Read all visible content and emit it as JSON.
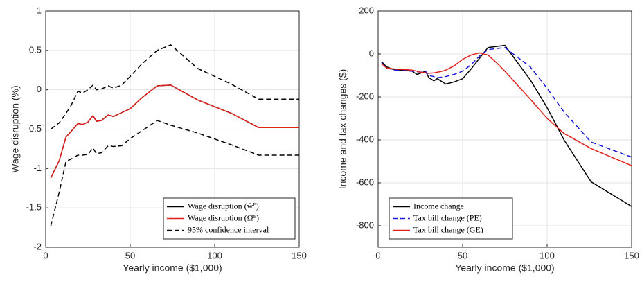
{
  "chart_data": [
    {
      "type": "line",
      "xlabel": "Yearly income ($1,000)",
      "ylabel": "Wage disruption (%)",
      "xlim": [
        0,
        150
      ],
      "ylim": [
        -2,
        1
      ],
      "xticks": [
        0,
        50,
        100,
        150
      ],
      "yticks": [
        -2,
        -1.5,
        -1,
        -0.5,
        0,
        0.5,
        1
      ],
      "grid": true,
      "legend": "lower right",
      "x": [
        3,
        8,
        12,
        15,
        19,
        22,
        25,
        28,
        30,
        33,
        37,
        40,
        45,
        50,
        57,
        66,
        74,
        90,
        110,
        126,
        150
      ],
      "series": [
        {
          "name": "Wage disruption (ŵᴱ)",
          "color": "#000000",
          "dashed": false,
          "values": [
            -1.12,
            -0.9,
            -0.6,
            -0.53,
            -0.43,
            -0.44,
            -0.41,
            -0.33,
            -0.4,
            -0.39,
            -0.32,
            -0.34,
            -0.29,
            -0.24,
            -0.1,
            0.05,
            0.06,
            -0.13,
            -0.3,
            -0.48,
            -0.48
          ]
        },
        {
          "name": "Wage disruption (Ω̂ᴱ)",
          "color": "#e0201b",
          "dashed": false,
          "values": [
            -1.12,
            -0.9,
            -0.6,
            -0.53,
            -0.43,
            -0.44,
            -0.41,
            -0.33,
            -0.4,
            -0.39,
            -0.32,
            -0.34,
            -0.29,
            -0.24,
            -0.1,
            0.05,
            0.06,
            -0.13,
            -0.3,
            -0.48,
            -0.48
          ]
        },
        {
          "name": "95% confidence interval",
          "color": "#000000",
          "dashed": true,
          "upper": [
            -0.5,
            -0.42,
            -0.3,
            -0.2,
            -0.02,
            -0.04,
            0.0,
            0.06,
            0.0,
            0.01,
            0.05,
            0.02,
            0.06,
            0.17,
            0.33,
            0.5,
            0.57,
            0.27,
            0.07,
            -0.12,
            -0.12
          ],
          "lower": [
            -1.73,
            -1.3,
            -0.91,
            -0.88,
            -0.83,
            -0.83,
            -0.82,
            -0.74,
            -0.81,
            -0.8,
            -0.71,
            -0.72,
            -0.71,
            -0.62,
            -0.52,
            -0.39,
            -0.45,
            -0.55,
            -0.7,
            -0.83,
            -0.83
          ]
        }
      ]
    },
    {
      "type": "line",
      "xlabel": "Yearly income ($1,000)",
      "ylabel": "Income and tax changes ($)",
      "xlim": [
        0,
        150
      ],
      "ylim": [
        -900,
        200
      ],
      "xticks": [
        0,
        50,
        100,
        150
      ],
      "yticks": [
        -800,
        -600,
        -400,
        -200,
        0,
        200
      ],
      "grid": true,
      "legend": "lower left",
      "x": [
        2,
        5,
        10,
        15,
        20,
        23,
        25,
        28,
        30,
        33,
        35,
        38,
        40,
        45,
        50,
        55,
        60,
        65,
        70,
        75,
        90,
        100,
        110,
        126,
        150
      ],
      "series": [
        {
          "name": "Income change",
          "color": "#000000",
          "dashed": false,
          "values": [
            -35,
            -60,
            -75,
            -75,
            -80,
            -95,
            -90,
            -80,
            -110,
            -125,
            -115,
            -130,
            -140,
            -130,
            -115,
            -70,
            -20,
            30,
            35,
            40,
            -120,
            -250,
            -400,
            -595,
            -710
          ]
        },
        {
          "name": "Tax bill change (PE)",
          "color": "#1a1adb",
          "dashed": true,
          "values": [
            -40,
            -65,
            -75,
            -78,
            -80,
            -82,
            -85,
            -80,
            -100,
            -105,
            -110,
            -108,
            -105,
            -95,
            -80,
            -50,
            -10,
            20,
            25,
            30,
            -60,
            -160,
            -270,
            -410,
            -480
          ]
        },
        {
          "name": "Tax bill change (GE)",
          "color": "#e0201b",
          "dashed": false,
          "values": [
            -45,
            -65,
            -70,
            -72,
            -75,
            -80,
            -85,
            -88,
            -90,
            -88,
            -85,
            -80,
            -75,
            -55,
            -25,
            -5,
            5,
            -5,
            -40,
            -80,
            -210,
            -300,
            -370,
            -440,
            -520
          ]
        }
      ]
    }
  ]
}
